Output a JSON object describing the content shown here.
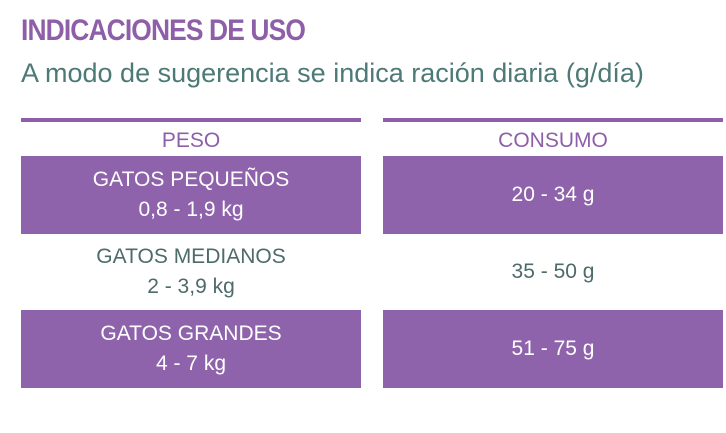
{
  "header": {
    "title": "INDICACIONES DE USO",
    "subtitle": "A modo de sugerencia se indica ración diaria (g/día)"
  },
  "table": {
    "columns": [
      "PESO",
      "CONSUMO"
    ],
    "rows": [
      [
        [
          "GATOS PEQUEÑOS",
          "0,8 - 1,9 kg"
        ],
        "20 - 34 g"
      ],
      [
        [
          "GATOS MEDIANOS",
          "2 - 3,9 kg"
        ],
        "35 - 50 g"
      ],
      [
        [
          "GATOS GRANDES",
          "4 - 7 kg"
        ],
        "51 - 75 g"
      ]
    ]
  }
}
